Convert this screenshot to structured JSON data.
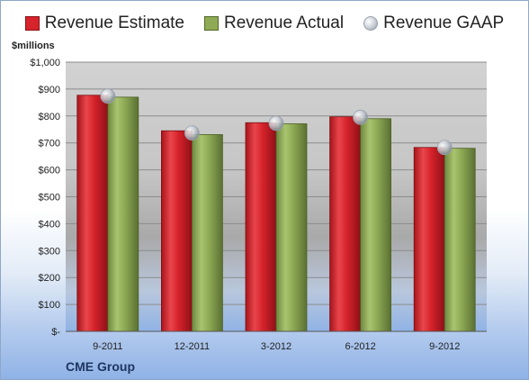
{
  "legend": {
    "estimate": "Revenue Estimate",
    "actual": "Revenue Actual",
    "gaap": "Revenue GAAP"
  },
  "unit_label": "$millions",
  "company": "CME Group",
  "colors": {
    "estimate": "#d7232b",
    "actual": "#8eaa55",
    "gaap": "#c9ced6"
  },
  "chart_data": {
    "type": "bar",
    "title": "",
    "xlabel": "",
    "ylabel": "$millions",
    "categories": [
      "9-2011",
      "12-2011",
      "3-2012",
      "6-2012",
      "9-2012"
    ],
    "y_ticks": [
      "$-",
      "$100",
      "$200",
      "$300",
      "$400",
      "$500",
      "$600",
      "$700",
      "$800",
      "$900",
      "$1,000"
    ],
    "ylim": [
      0,
      1000
    ],
    "grid": true,
    "legend_position": "top",
    "series": [
      {
        "name": "Revenue Estimate",
        "values": [
          877,
          745,
          775,
          797,
          683
        ]
      },
      {
        "name": "Revenue Actual",
        "values": [
          870,
          731,
          771,
          790,
          680
        ]
      },
      {
        "name": "Revenue GAAP",
        "values": [
          874,
          737,
          773,
          795,
          683
        ]
      }
    ]
  }
}
